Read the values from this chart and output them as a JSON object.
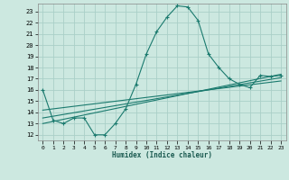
{
  "title": "",
  "xlabel": "Humidex (Indice chaleur)",
  "background_color": "#cce8e0",
  "grid_color": "#aacfc8",
  "line_color": "#1a7a6e",
  "x_ticks": [
    0,
    1,
    2,
    3,
    4,
    5,
    6,
    7,
    8,
    9,
    10,
    11,
    12,
    13,
    14,
    15,
    16,
    17,
    18,
    19,
    20,
    21,
    22,
    23
  ],
  "y_ticks": [
    12,
    13,
    14,
    15,
    16,
    17,
    18,
    19,
    20,
    21,
    22,
    23
  ],
  "xlim": [
    -0.5,
    23.5
  ],
  "ylim": [
    11.5,
    23.7
  ],
  "main_line_x": [
    0,
    1,
    2,
    3,
    4,
    5,
    6,
    7,
    8,
    9,
    10,
    11,
    12,
    13,
    14,
    15,
    16,
    17,
    18,
    19,
    20,
    21,
    22,
    23
  ],
  "main_line_y": [
    16.0,
    13.3,
    13.0,
    13.5,
    13.5,
    12.0,
    12.0,
    13.0,
    14.3,
    16.5,
    19.2,
    21.2,
    22.5,
    23.5,
    23.4,
    22.2,
    19.2,
    18.0,
    17.0,
    16.5,
    16.2,
    17.3,
    17.2,
    17.3
  ],
  "line2_x": [
    0,
    23
  ],
  "line2_y": [
    13.0,
    17.4
  ],
  "line3_x": [
    0,
    23
  ],
  "line3_y": [
    13.5,
    17.1
  ],
  "line4_x": [
    0,
    23
  ],
  "line4_y": [
    14.2,
    16.8
  ]
}
